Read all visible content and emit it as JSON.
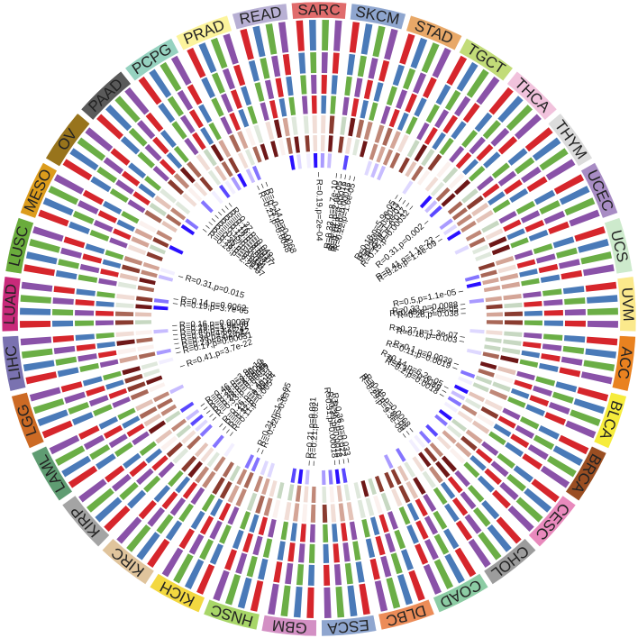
{
  "chart_data": {
    "type": "circular-heatmap",
    "segments": [
      {
        "name": "SARC",
        "color": "#e06c6c"
      },
      {
        "name": "SKCM",
        "color": "#8fa6cf"
      },
      {
        "name": "STAD",
        "color": "#e8a868"
      },
      {
        "name": "TGCT",
        "color": "#c2dc78"
      },
      {
        "name": "THCA",
        "color": "#f1c2dc"
      },
      {
        "name": "THYM",
        "color": "#dcdcdc"
      },
      {
        "name": "UCEC",
        "color": "#a88cc4"
      },
      {
        "name": "UCS",
        "color": "#cdeacc"
      },
      {
        "name": "UVM",
        "color": "#fbe98c"
      },
      {
        "name": "ACC",
        "color": "#e98220"
      },
      {
        "name": "BLCA",
        "color": "#f6ec3c"
      },
      {
        "name": "BRCA",
        "color": "#9a4e22"
      },
      {
        "name": "CESC",
        "color": "#e889bc"
      },
      {
        "name": "CHOL",
        "color": "#9c9c9c"
      },
      {
        "name": "COAD",
        "color": "#8ccca4"
      },
      {
        "name": "DLBC",
        "color": "#ec8c58"
      },
      {
        "name": "ESCA",
        "color": "#8fa6cf"
      },
      {
        "name": "GBM",
        "color": "#d390c4"
      },
      {
        "name": "HNSC",
        "color": "#a8d668"
      },
      {
        "name": "KICH",
        "color": "#f3d840"
      },
      {
        "name": "KIRC",
        "color": "#e0c49c"
      },
      {
        "name": "KIRP",
        "color": "#a4a4a4"
      },
      {
        "name": "LAML",
        "color": "#5f9c72"
      },
      {
        "name": "LGG",
        "color": "#cc6a24"
      },
      {
        "name": "LIHC",
        "color": "#7a72b0"
      },
      {
        "name": "LUAD",
        "color": "#c82a7a"
      },
      {
        "name": "LUSC",
        "color": "#6aac3c"
      },
      {
        "name": "MESO",
        "color": "#dc9c1c"
      },
      {
        "name": "OV",
        "color": "#98741c"
      },
      {
        "name": "PAAD",
        "color": "#5a5a5a"
      },
      {
        "name": "PCPG",
        "color": "#96d2c0"
      },
      {
        "name": "PRAD",
        "color": "#fcf49c"
      },
      {
        "name": "READ",
        "color": "#b8b0d4"
      }
    ],
    "annotations": [
      "R=0.19,p=2e-04",
      "R=0.32,p=8.7e-10",
      "R=0.22,p=2.9e-05",
      "R=0.18,p=0.00016",
      "R=0.18,p=0.00016",
      "R=0.22,p=1.6e-05",
      "R=0.18,p=5.9e-05",
      "R=0.13,p=0.0043",
      "R=0.23,p=1.2e-07",
      "R=0.11,p=0.017",
      "R=0.15,p=0.00032",
      "R=0.31,p=0.002",
      "R=0.41,p=1.1e-22",
      "R=0.26,p=1.4e-09",
      "R=0.5,p=1.1e-05",
      "R=0.33,p=0.0088",
      "R=0.48,p=3.4e-05",
      "R=0.28,p=0.038",
      "R=0.27,p=1.3e-07",
      "R=0.16,p=0.003",
      "R=0.1,p=0.0039",
      "R=-0.11,p=0.0019",
      "R=0.14,p=6.2e-05",
      "R=0.1,p=0.0089",
      "R=0.2,p=0.0018",
      "R=0.49,p=0.0068",
      "R=0.25,p=2.8e-06",
      "R=0.29,p=9.3e-08",
      "R=-0.36,p=0.033",
      "R=0.3,p=0.022",
      "R=0.39,p=0.0018",
      "R=0.31,p=0.00018",
      "R=0.21,p=0.02",
      "R=0.21,p=0.031",
      "R=-0.32,p=0.037",
      "R=0.21,p=1.3e-05",
      "R=0.11,p=0.005",
      "R=0.32,p=7.4e-14",
      "R=0.12,p=0.0013",
      "R=0.26,p=1.4e-13",
      "R=0.33,p=0.00017",
      "R=0.28,p=0.00059",
      "R=0.35,p=4.8e-06",
      "R=0.29,p=0.00022",
      "R=0.46,p=3.9e-10",
      "R=0.41,p=3.7e-22",
      "R=0.17,p=0.00031",
      "R=0.2,p=8.9e-05",
      "R=0.36,p=2.2e-12",
      "R=0.5,p=4.5e-24",
      "R=0.48,p=3.2e-22",
      "R=0.29,p=1.9e-08",
      "R=0.16,p=0.00037",
      "R=0.19,p=3.7e-05",
      "R=0.14,p=0.0062",
      "R=0.31,p=0.015",
      "R=0.28,p=2.2e-07",
      "R=0.28,p=0.0011",
      "R=0.35,p=0.014",
      "R=-0.17,p=0.014",
      "R=0.15,p=0.013",
      "R=0.12,p=0.004",
      "R=0.18,p=9.6e-07",
      "R=0.16,p=0.0017",
      "R=0.37,p=0.049",
      "R=0.21,p=0.0048",
      "R=0.23,p=0.04",
      "R=-0.14,p=0.0068"
    ]
  }
}
